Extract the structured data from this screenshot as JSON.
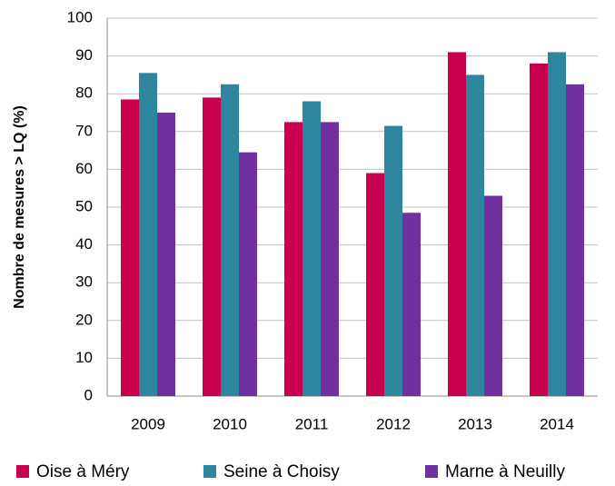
{
  "chart_data": {
    "type": "bar",
    "y_label": "Nombre de mesures > LQ (%)",
    "categories": [
      "2009",
      "2010",
      "2011",
      "2012",
      "2013",
      "2014"
    ],
    "series": [
      {
        "name": "Oise à Méry",
        "color": "#c8004e",
        "values": [
          78.5,
          79,
          72.5,
          59,
          91,
          88
        ]
      },
      {
        "name": "Seine à Choisy",
        "color": "#2e869e",
        "values": [
          85.5,
          82.5,
          78,
          71.5,
          85,
          91
        ]
      },
      {
        "name": "Marne à Neuilly",
        "color": "#7030a0",
        "values": [
          75,
          64.5,
          72.5,
          48.5,
          53,
          82.5
        ]
      }
    ],
    "ylim": [
      0,
      100
    ],
    "yticks": [
      0,
      10,
      20,
      30,
      40,
      50,
      60,
      70,
      80,
      90,
      100
    ],
    "grid": true,
    "legend": "bottom"
  }
}
